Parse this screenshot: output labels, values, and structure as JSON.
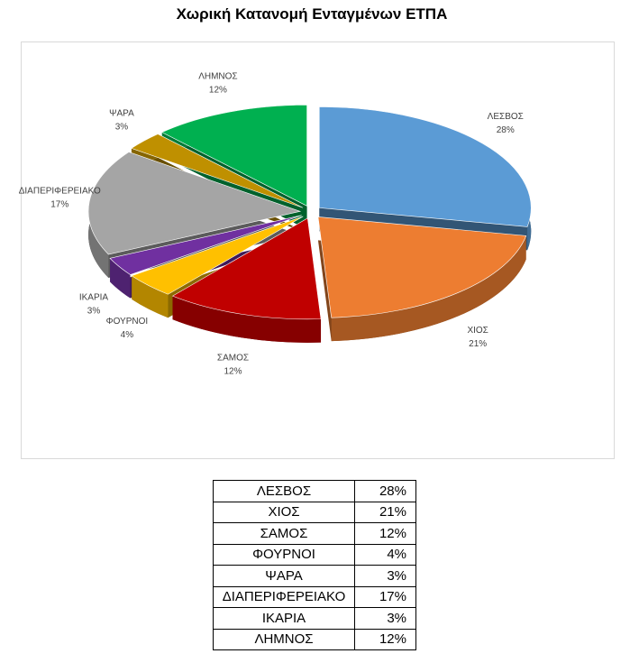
{
  "chart_data": {
    "type": "pie",
    "title": "Χωρική Κατανομή Ενταγμένων ΕΤΠΑ",
    "categories": [
      "ΛΕΣΒΟΣ",
      "ΧΙΟΣ",
      "ΣΑΜΟΣ",
      "ΦΟΥΡΝΟΙ",
      "ΙΚΑΡΙΑ",
      "ΔΙΑΠΕΡΙΦΕΡΕΙΑΚΟ",
      "ΨΑΡΑ",
      "ΛΗΜΝΟΣ"
    ],
    "values": [
      28,
      21,
      12,
      4,
      3,
      17,
      3,
      12
    ],
    "value_labels": [
      "28%",
      "21%",
      "12%",
      "4%",
      "3%",
      "17%",
      "3%",
      "12%"
    ],
    "colors": [
      "#5b9bd5",
      "#ed7d31",
      "#c00000",
      "#ffc000",
      "#7030a0",
      "#a5a5a5",
      "#bf9000",
      "#00b050"
    ]
  },
  "table": {
    "rows": [
      [
        "ΛΕΣΒΟΣ",
        "28%"
      ],
      [
        "ΧΙΟΣ",
        "21%"
      ],
      [
        "ΣΑΜΟΣ",
        "12%"
      ],
      [
        "ΦΟΥΡΝΟΙ",
        "4%"
      ],
      [
        "ΨΑΡΑ",
        "3%"
      ],
      [
        "ΔΙΑΠΕΡΙΦΕΡΕΙΑΚΟ",
        "17%"
      ],
      [
        "ΙΚΑΡΙΑ",
        "3%"
      ],
      [
        "ΛΗΜΝΟΣ",
        "12%"
      ]
    ]
  }
}
